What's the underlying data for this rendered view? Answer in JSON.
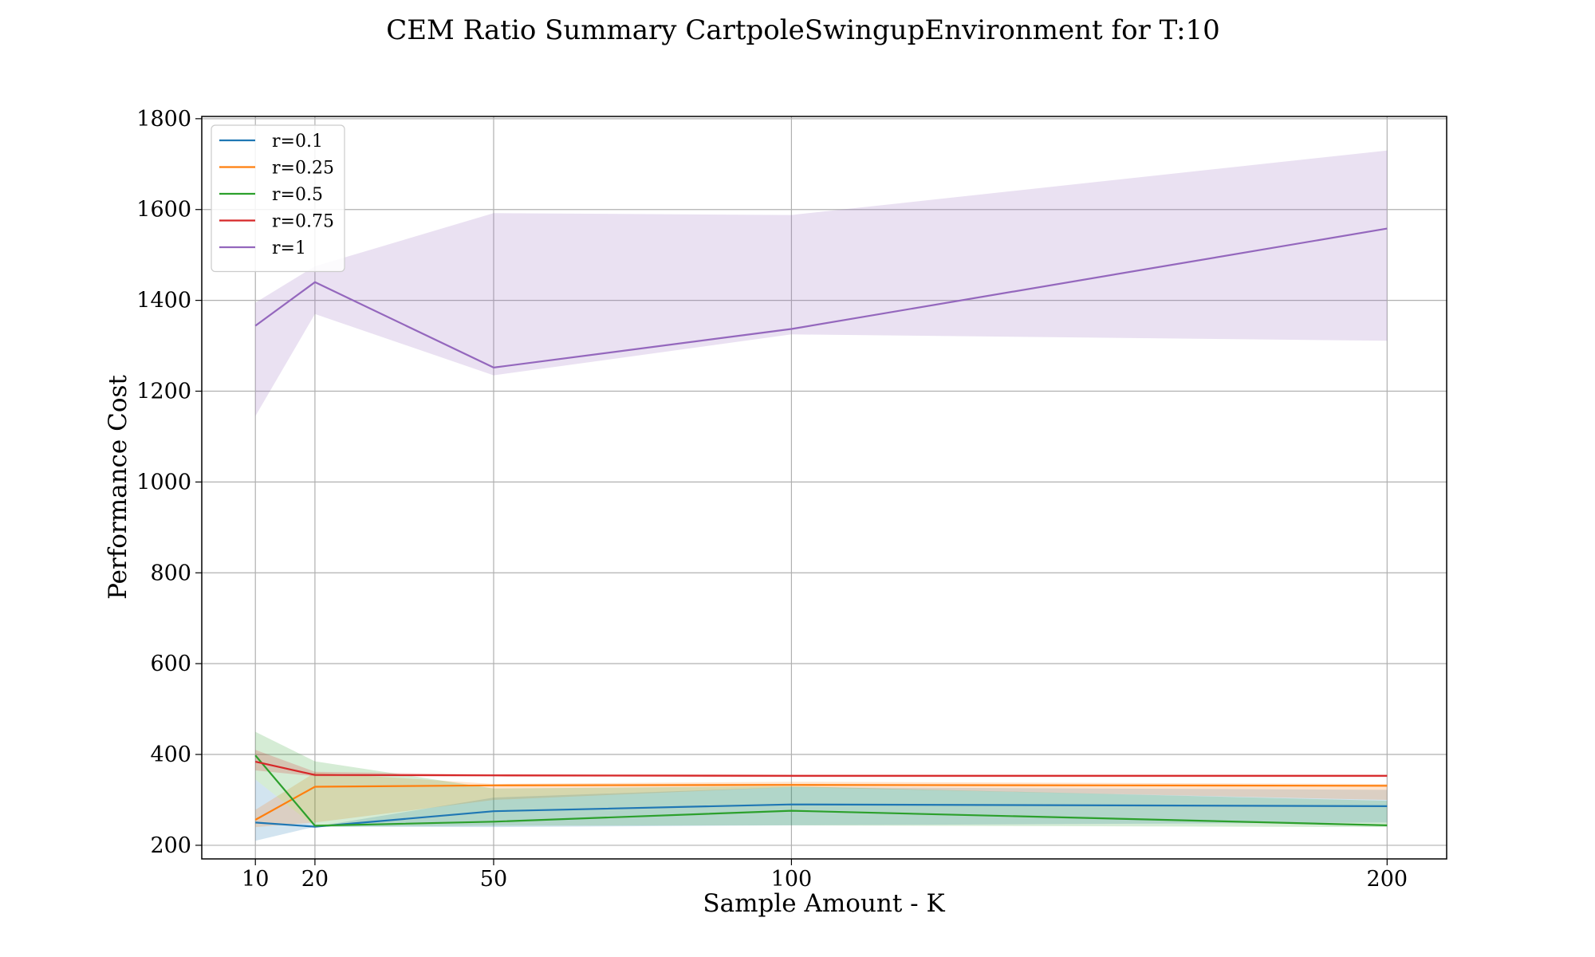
{
  "chart_data": {
    "type": "line",
    "title": "CEM Ratio Summary CartpoleSwingupEnvironment for T:10",
    "xlabel": "Sample Amount - K",
    "ylabel": "Performance Cost",
    "x": [
      10,
      20,
      50,
      100,
      200
    ],
    "xticks": [
      10,
      20,
      50,
      100,
      200
    ],
    "yticks": [
      200,
      400,
      600,
      800,
      1000,
      1200,
      1400,
      1600,
      1800
    ],
    "xlim": [
      1,
      210
    ],
    "ylim": [
      170,
      1805
    ],
    "grid": true,
    "legend_position": "top-left",
    "series": [
      {
        "name": "r=0.1",
        "color": "#1f77b4",
        "values": [
          250,
          241,
          275,
          290,
          286
        ],
        "band_low": [
          210,
          241,
          240,
          244,
          250
        ],
        "band_high": [
          345,
          241,
          305,
          328,
          322
        ]
      },
      {
        "name": "r=0.25",
        "color": "#ff7f0e",
        "values": [
          256,
          329,
          332,
          333,
          331
        ],
        "band_low": [
          240,
          250,
          300,
          328,
          300
        ],
        "band_high": [
          278,
          360,
          335,
          340,
          335
        ]
      },
      {
        "name": "r=0.5",
        "color": "#2ca02c",
        "values": [
          398,
          243,
          252,
          276,
          244
        ],
        "band_low": [
          345,
          241,
          243,
          244,
          240
        ],
        "band_high": [
          450,
          385,
          325,
          330,
          298
        ]
      },
      {
        "name": "r=0.75",
        "color": "#d62728",
        "values": [
          384,
          355,
          354,
          353,
          353
        ],
        "band_low": [
          365,
          352,
          351,
          350,
          350
        ],
        "band_high": [
          410,
          362,
          356,
          356,
          356
        ]
      },
      {
        "name": "r=1",
        "color": "#9467bd",
        "values": [
          1344,
          1440,
          1252,
          1337,
          1558
        ],
        "band_low": [
          1145,
          1370,
          1235,
          1325,
          1311
        ],
        "band_high": [
          1395,
          1475,
          1592,
          1588,
          1730
        ]
      }
    ]
  }
}
